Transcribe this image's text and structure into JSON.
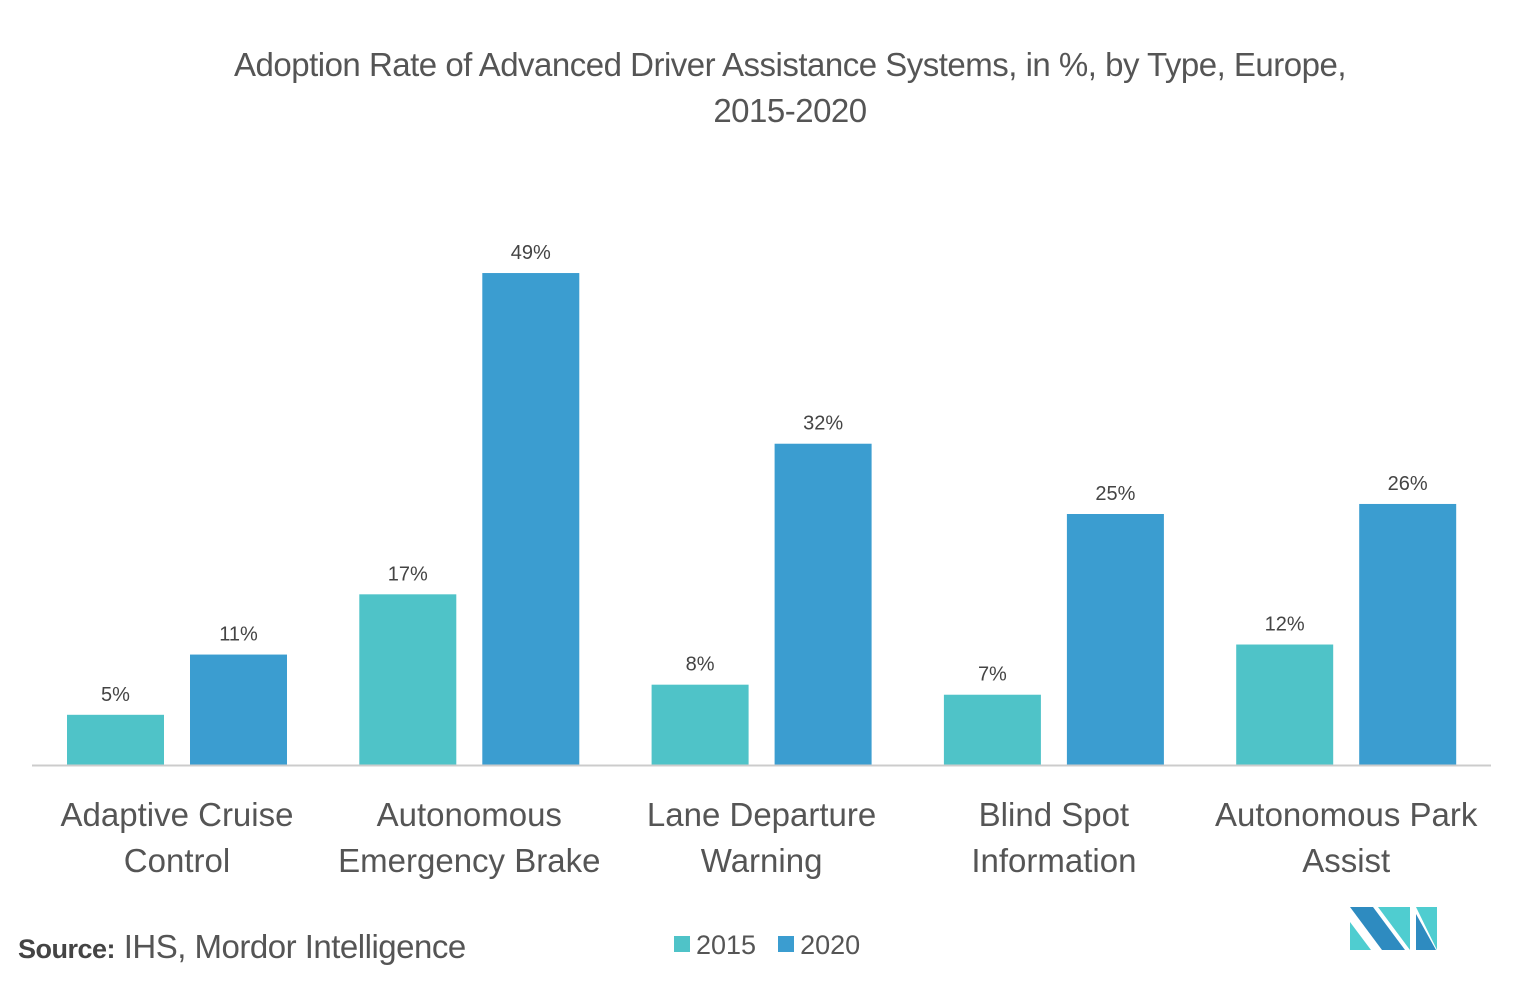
{
  "chart_data": {
    "type": "bar",
    "title": "Adoption Rate of Advanced Driver Assistance Systems, in %, by Type, Europe, 2015-2020",
    "title_lines": [
      "Adoption Rate of Advanced Driver Assistance Systems, in %, by Type, Europe,",
      "2015-2020"
    ],
    "categories": [
      [
        "Adaptive Cruise",
        "Control"
      ],
      [
        "Autonomous",
        "Emergency Brake"
      ],
      [
        "Lane Departure",
        "Warning"
      ],
      [
        "Blind Spot",
        "Information"
      ],
      [
        "Autonomous Park",
        "Assist"
      ]
    ],
    "series": [
      {
        "name": "2015",
        "color": "#4fc3c8",
        "values": [
          5,
          17,
          8,
          7,
          12
        ],
        "labels": [
          "5%",
          "17%",
          "8%",
          "7%",
          "12%"
        ]
      },
      {
        "name": "2020",
        "color": "#3b9dd0",
        "values": [
          11,
          49,
          32,
          25,
          26
        ],
        "labels": [
          "11%",
          "49%",
          "32%",
          "25%",
          "26%"
        ]
      }
    ],
    "ylim": [
      0,
      50
    ],
    "grid": false,
    "legend_position": "bottom-center",
    "xlabel": "",
    "ylabel": ""
  },
  "source": {
    "label": "Source:",
    "text": " IHS, Mordor Intelligence"
  },
  "logo": {
    "text": "Mordor Intelligence",
    "colors": [
      "#2e8bc0",
      "#4fcdd0"
    ]
  }
}
